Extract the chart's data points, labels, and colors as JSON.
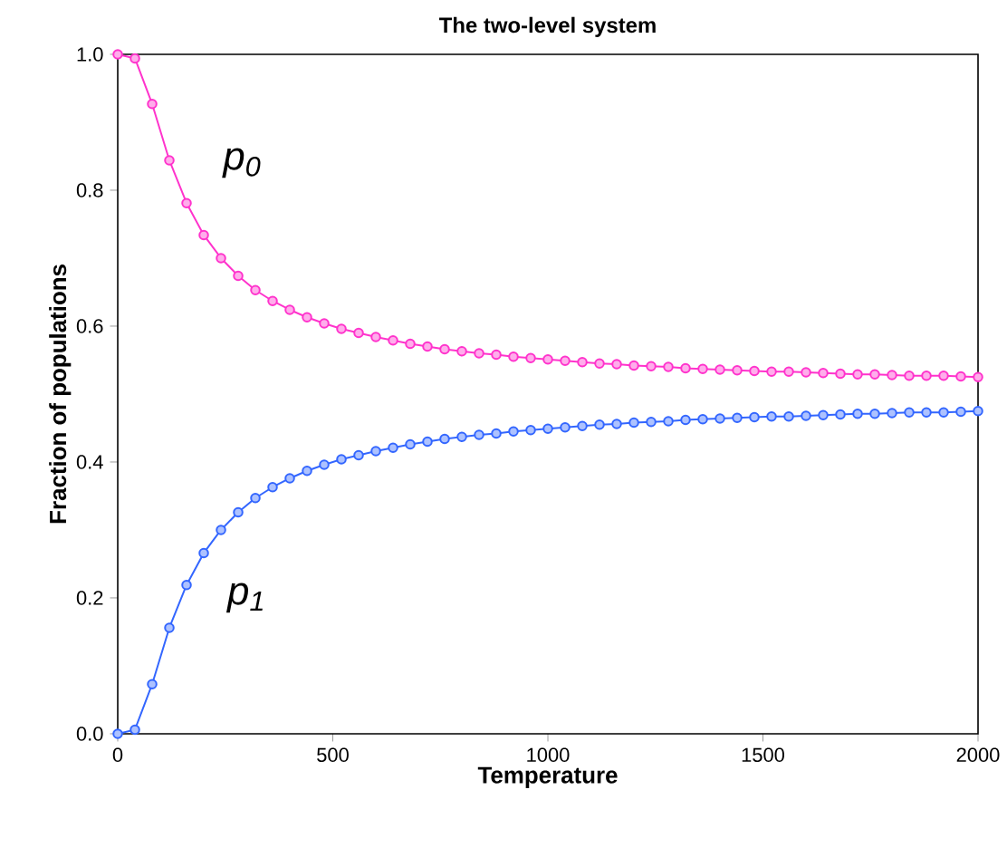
{
  "chart_data": {
    "type": "line",
    "title": "The two-level system",
    "xlabel": "Temperature",
    "ylabel": "Fraction of populations",
    "x": [
      0,
      40,
      80,
      120,
      160,
      200,
      240,
      280,
      320,
      360,
      400,
      440,
      480,
      520,
      560,
      600,
      640,
      680,
      720,
      760,
      800,
      840,
      880,
      920,
      960,
      1000,
      1040,
      1080,
      1120,
      1160,
      1200,
      1240,
      1280,
      1320,
      1360,
      1400,
      1440,
      1480,
      1520,
      1560,
      1600,
      1640,
      1680,
      1720,
      1760,
      1800,
      1840,
      1880,
      1920,
      1960,
      2000
    ],
    "series": [
      {
        "color": "#ff33cc",
        "values": [
          1.0,
          0.994,
          0.927,
          0.844,
          0.781,
          0.734,
          0.7,
          0.674,
          0.653,
          0.637,
          0.624,
          0.613,
          0.604,
          0.596,
          0.59,
          0.584,
          0.579,
          0.574,
          0.57,
          0.566,
          0.563,
          0.56,
          0.558,
          0.555,
          0.553,
          0.551,
          0.549,
          0.547,
          0.545,
          0.544,
          0.542,
          0.541,
          0.54,
          0.538,
          0.537,
          0.536,
          0.535,
          0.534,
          0.533,
          0.533,
          0.532,
          0.531,
          0.53,
          0.529,
          0.529,
          0.528,
          0.527,
          0.527,
          0.527,
          0.526,
          0.525
        ]
      },
      {
        "color": "#3366ff",
        "values": [
          0.0,
          0.006,
          0.073,
          0.156,
          0.219,
          0.266,
          0.3,
          0.326,
          0.347,
          0.363,
          0.376,
          0.387,
          0.396,
          0.404,
          0.41,
          0.416,
          0.421,
          0.426,
          0.43,
          0.434,
          0.437,
          0.44,
          0.442,
          0.445,
          0.447,
          0.449,
          0.451,
          0.453,
          0.455,
          0.456,
          0.458,
          0.459,
          0.46,
          0.462,
          0.463,
          0.464,
          0.465,
          0.466,
          0.467,
          0.467,
          0.468,
          0.469,
          0.47,
          0.471,
          0.471,
          0.472,
          0.473,
          0.473,
          0.473,
          0.474,
          0.475
        ]
      }
    ],
    "annotations": [
      "p$_{0}$",
      "p$_{1}$"
    ],
    "xlim": [
      0,
      2000
    ],
    "ylim": [
      0,
      1
    ],
    "xticks": [
      0,
      500,
      1000,
      1500,
      2000
    ],
    "yticks": [
      {
        "value": 0,
        "label": "0.0"
      },
      {
        "value": 0.2,
        "label": "0.2"
      },
      {
        "value": 0.4,
        "label": "0.4"
      },
      {
        "value": 0.6,
        "label": "0.6"
      },
      {
        "value": 0.8,
        "label": "0.8"
      },
      {
        "value": 1,
        "label": "1.0"
      }
    ],
    "grid": false,
    "marker": "circle",
    "line_style": "solid"
  }
}
